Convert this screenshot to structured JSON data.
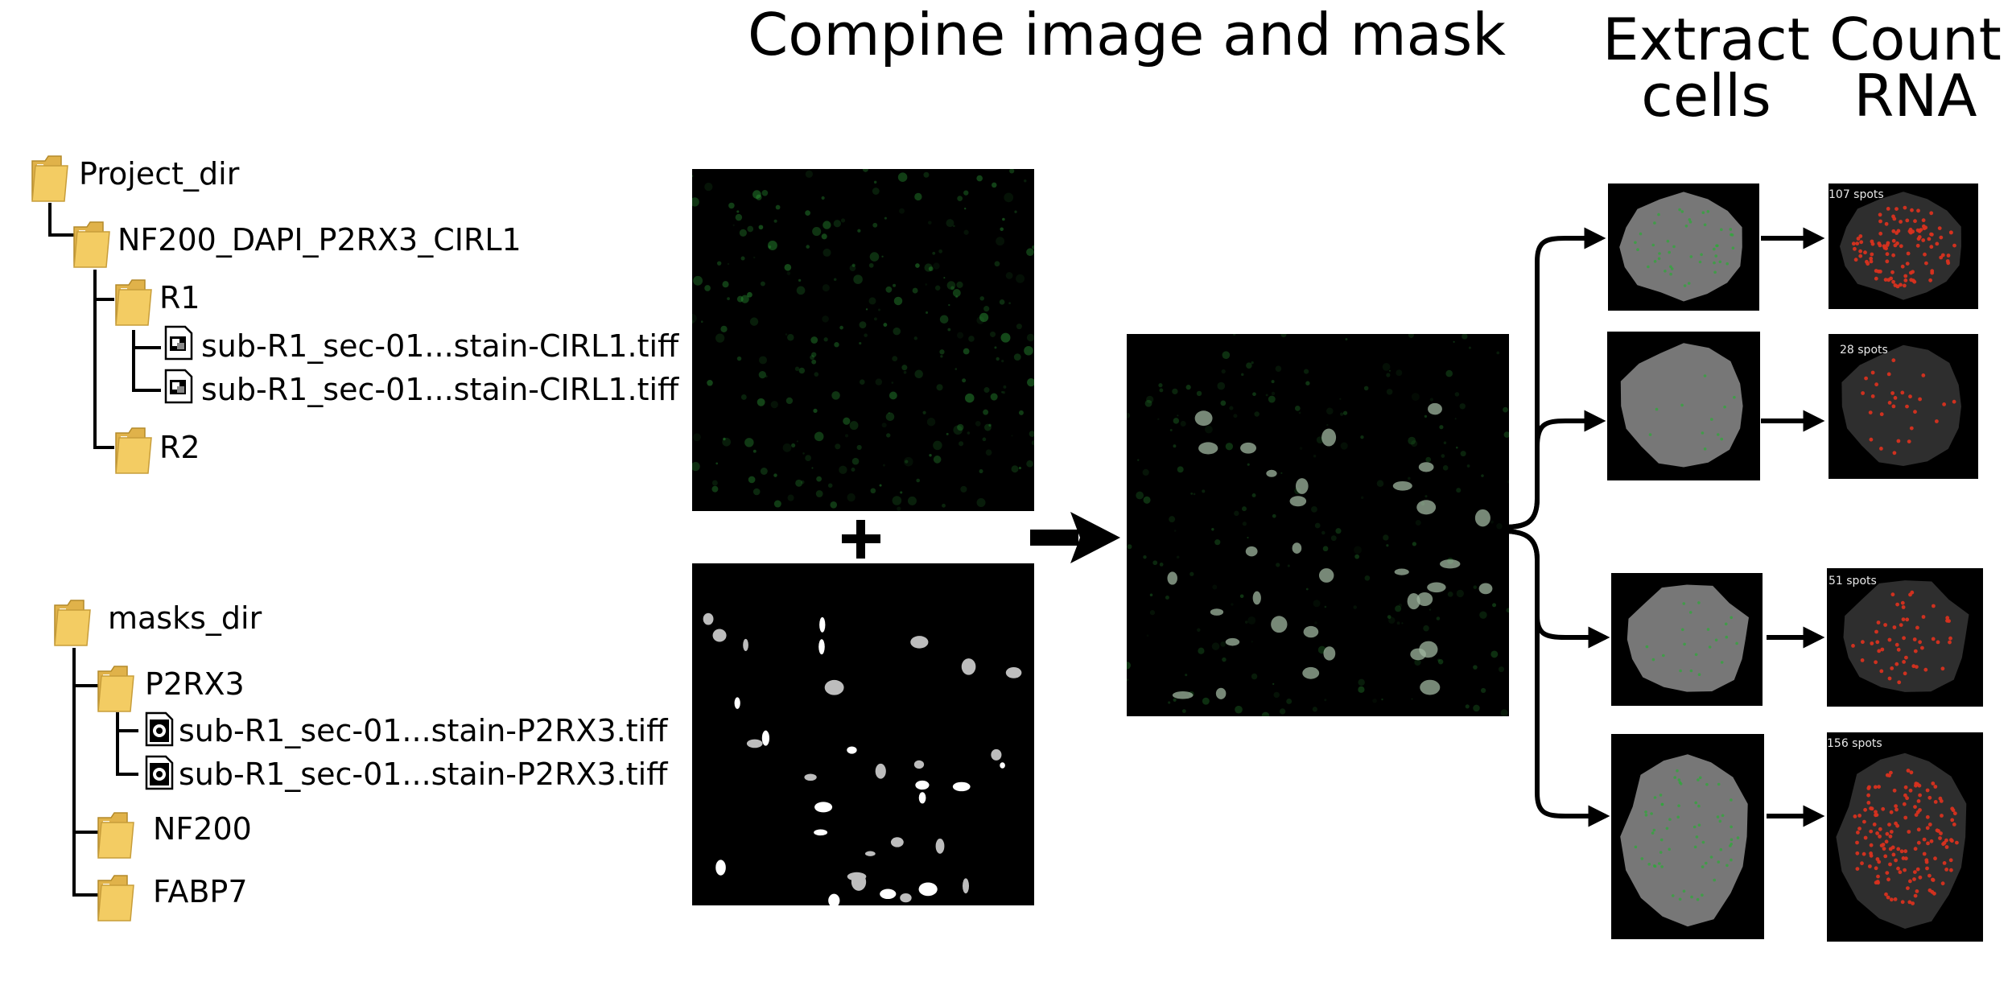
{
  "headings": {
    "combine": "Compine image and mask",
    "extract": "Extract cells",
    "count": "Count RNA"
  },
  "image_tree": {
    "root": "Project_dir",
    "experiment": "NF200_DAPI_P2RX3_CIRL1",
    "rounds": [
      "R1",
      "R2"
    ],
    "files": [
      "sub-R1_sec-01...stain-CIRL1.tiff",
      "sub-R1_sec-01...stain-CIRL1.tiff"
    ]
  },
  "mask_tree": {
    "root": "masks_dir",
    "folders": [
      "P2RX3",
      "NF200",
      "FABP7"
    ],
    "files": [
      "sub-R1_sec-01...stain-P2RX3.tiff",
      "sub-R1_sec-01...stain-P2RX3.tiff"
    ]
  },
  "operator": "+",
  "cells": [
    {
      "spots": "107 spots"
    },
    {
      "spots": "28 spots"
    },
    {
      "spots": "51 spots"
    },
    {
      "spots": "156 spots"
    }
  ],
  "colors": {
    "folder": "#f3cc63",
    "fluorescence": "#2fa83a",
    "rna_spot": "#d8321f",
    "cell_body": "#777777"
  },
  "icons": [
    "folder-icon",
    "image-file-icon",
    "mask-file-icon",
    "arrow-icon",
    "plus-icon"
  ]
}
